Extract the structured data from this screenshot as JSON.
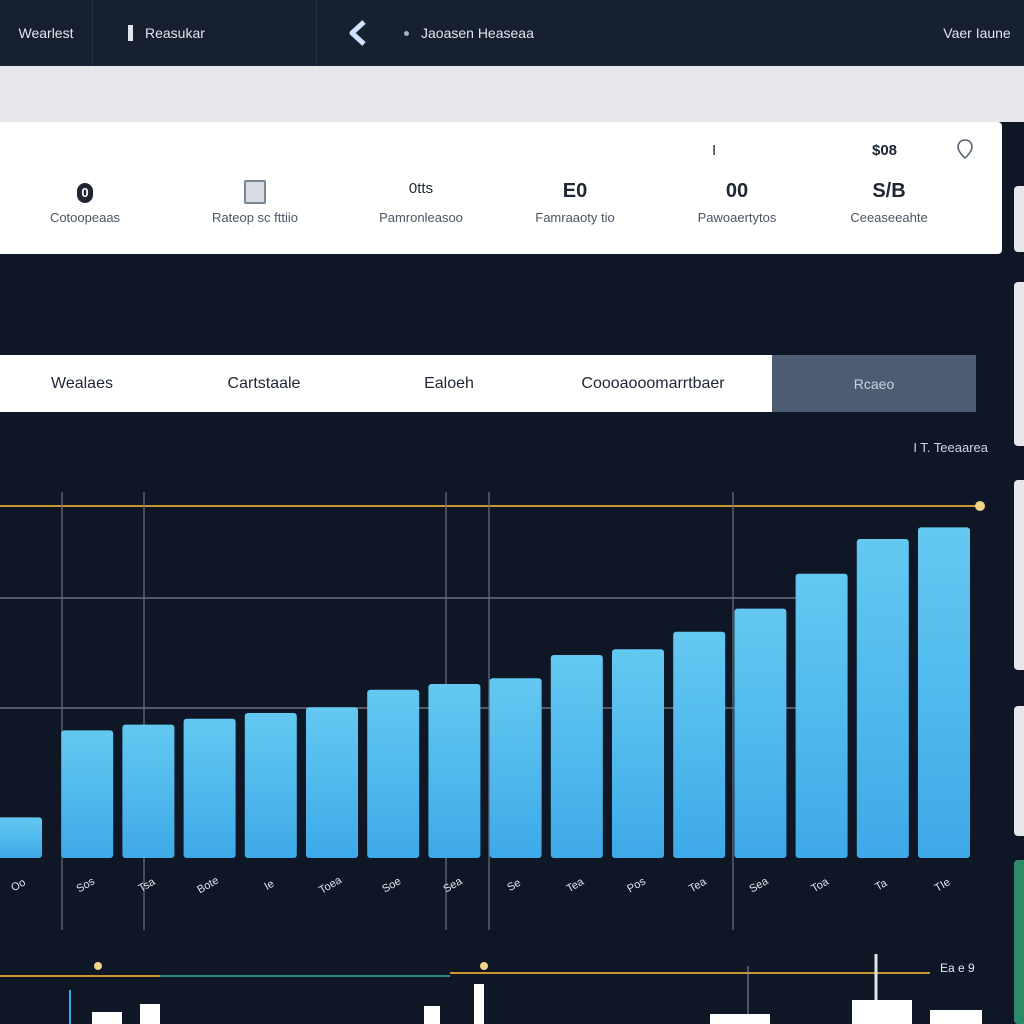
{
  "topbar": {
    "item_1": "Wearlest",
    "item_2": "Reasukar",
    "item_3": "Jaoasen Heaseaa",
    "right_label": "Vaer Iaune"
  },
  "stats_card": {
    "top_small": "I",
    "top_value": "$08",
    "stats": [
      {
        "value": "0",
        "label": "Cotoopeaas",
        "icon": "circle-badge-icon"
      },
      {
        "value": "",
        "label": "Rateop sc fttiio",
        "icon": "document-icon"
      },
      {
        "value": "0tts",
        "label": "Pamronleasoo",
        "icon": null
      },
      {
        "value": "E0",
        "label": "Famraaoty tio",
        "icon": null
      },
      {
        "value": "00",
        "label": "Pawoaertytos",
        "icon": null
      },
      {
        "value": "S/B",
        "label": "Ceeaseeahte",
        "icon": null
      }
    ]
  },
  "tabs": [
    {
      "label": "Wealaes",
      "active": false
    },
    {
      "label": "Cartstaale",
      "active": false
    },
    {
      "label": "Ealoeh",
      "active": false
    },
    {
      "label": "Coooaooomarrtbaer",
      "active": false
    },
    {
      "label": "Rcaeo",
      "active": true
    }
  ],
  "legend_note": "I  T.  Teeaarea",
  "chart_data": {
    "type": "bar",
    "categories": [
      "Oo",
      "Sos",
      "Tsa",
      "Bote",
      "Ie",
      "Toea",
      "Soe",
      "Sea",
      "Se",
      "Tea",
      "Pos",
      "Tea",
      "Sea",
      "Toa",
      "Ta",
      "TIe"
    ],
    "values": [
      7,
      22,
      23,
      24,
      25,
      26,
      29,
      30,
      31,
      35,
      36,
      39,
      43,
      49,
      55,
      57
    ],
    "ylim": [
      0,
      60
    ],
    "grid": true,
    "colors": {
      "bar_top": "#5cc6f0",
      "bar_bottom": "#3aa7e6",
      "gridline": "#6a717c",
      "guide": "#c8962e"
    }
  },
  "mini_label": "Ea e  9"
}
